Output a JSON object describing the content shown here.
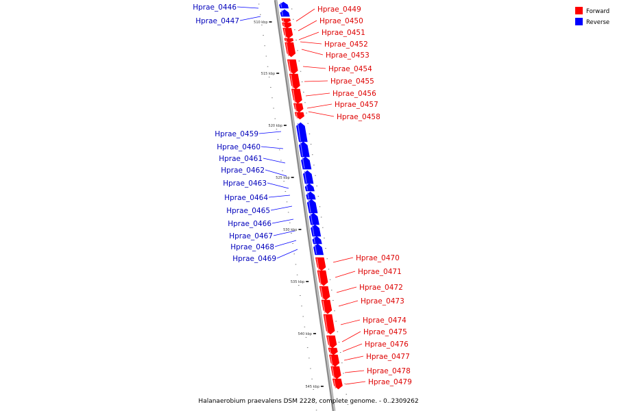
{
  "legend": {
    "forward": {
      "label": "Forward",
      "color": "#ff0000"
    },
    "reverse": {
      "label": "Reverse",
      "color": "#0000ff"
    }
  },
  "caption": "Halanaerobium praevalens DSM 2228, complete genome. - 0..2309262",
  "kbp_labels": [
    "510 kbp",
    "515 kbp",
    "520 kbp",
    "525 kbp",
    "530 kbp",
    "535 kbp",
    "540 kbp",
    "545 kbp"
  ],
  "genes": [
    {
      "name": "Hprae_0446",
      "strand": "reverse"
    },
    {
      "name": "Hprae_0447",
      "strand": "reverse"
    },
    {
      "name": "Hprae_0449",
      "strand": "forward"
    },
    {
      "name": "Hprae_0450",
      "strand": "forward"
    },
    {
      "name": "Hprae_0451",
      "strand": "forward"
    },
    {
      "name": "Hprae_0452",
      "strand": "forward"
    },
    {
      "name": "Hprae_0453",
      "strand": "forward"
    },
    {
      "name": "Hprae_0454",
      "strand": "forward"
    },
    {
      "name": "Hprae_0455",
      "strand": "forward"
    },
    {
      "name": "Hprae_0456",
      "strand": "forward"
    },
    {
      "name": "Hprae_0457",
      "strand": "forward"
    },
    {
      "name": "Hprae_0458",
      "strand": "forward"
    },
    {
      "name": "Hprae_0459",
      "strand": "reverse"
    },
    {
      "name": "Hprae_0460",
      "strand": "reverse"
    },
    {
      "name": "Hprae_0461",
      "strand": "reverse"
    },
    {
      "name": "Hprae_0462",
      "strand": "reverse"
    },
    {
      "name": "Hprae_0463",
      "strand": "reverse"
    },
    {
      "name": "Hprae_0464",
      "strand": "reverse"
    },
    {
      "name": "Hprae_0465",
      "strand": "reverse"
    },
    {
      "name": "Hprae_0466",
      "strand": "reverse"
    },
    {
      "name": "Hprae_0467",
      "strand": "reverse"
    },
    {
      "name": "Hprae_0468",
      "strand": "reverse"
    },
    {
      "name": "Hprae_0469",
      "strand": "reverse"
    },
    {
      "name": "Hprae_0470",
      "strand": "forward"
    },
    {
      "name": "Hprae_0471",
      "strand": "forward"
    },
    {
      "name": "Hprae_0472",
      "strand": "forward"
    },
    {
      "name": "Hprae_0473",
      "strand": "forward"
    },
    {
      "name": "Hprae_0474",
      "strand": "forward"
    },
    {
      "name": "Hprae_0475",
      "strand": "forward"
    },
    {
      "name": "Hprae_0476",
      "strand": "forward"
    },
    {
      "name": "Hprae_0477",
      "strand": "forward"
    },
    {
      "name": "Hprae_0478",
      "strand": "forward"
    },
    {
      "name": "Hprae_0479",
      "strand": "forward"
    }
  ]
}
